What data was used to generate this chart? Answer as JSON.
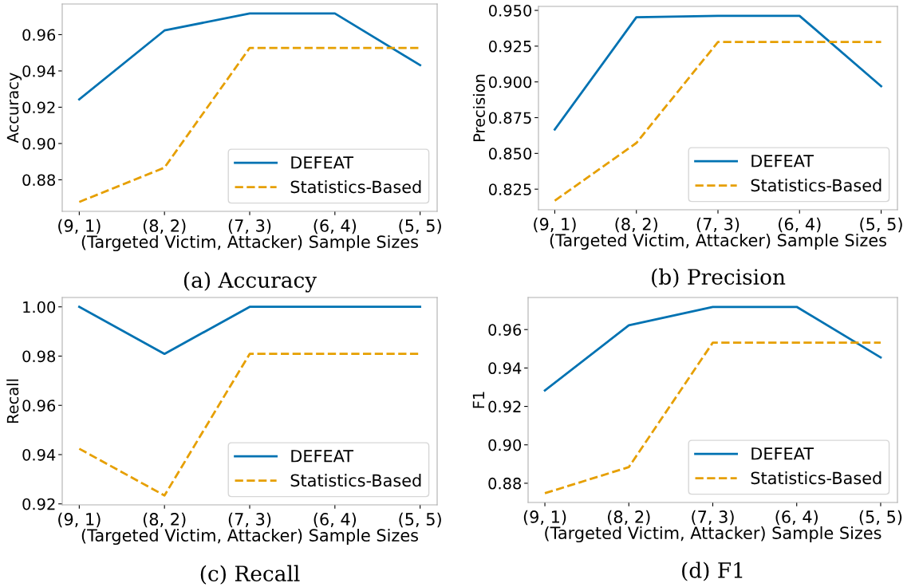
{
  "chart_data": [
    {
      "type": "line",
      "title": "(a) Accuracy",
      "xlabel": "(Targeted Victim, Attacker) Sample Sizes",
      "ylabel": "Accuracy",
      "categories": [
        "(9, 1)",
        "(8, 2)",
        "(7, 3)",
        "(6, 4)",
        "(5, 5)"
      ],
      "ylim": [
        0.8626,
        0.9769
      ],
      "yticks": [
        0.88,
        {
          "value": 0.9,
          "label": "0.90"
        },
        0.92,
        0.94,
        0.96
      ],
      "grid": false,
      "legend": "bottom right",
      "series": [
        {
          "name": "DEFEAT",
          "color": "#0072b2",
          "line_style": "solid",
          "values": [
            0.9243,
            0.9623,
            0.9717,
            0.9717,
            0.9432
          ]
        },
        {
          "name": "Statistics-Based",
          "color": "#e69f00",
          "line_style": "dashed",
          "values": [
            0.8678,
            0.8867,
            0.9527,
            0.9527,
            0.9527
          ]
        }
      ]
    },
    {
      "type": "line",
      "title": "(b) Precision",
      "xlabel": "(Targeted Victim, Attacker) Sample Sizes",
      "ylabel": "Precision",
      "categories": [
        "(9, 1)",
        "(8, 2)",
        "(7, 3)",
        "(6, 4)",
        "(5, 5)"
      ],
      "ylim": [
        0.8106,
        0.9528
      ],
      "yticks": [
        0.825,
        {
          "value": 0.85,
          "label": "0.850"
        },
        0.875,
        {
          "value": 0.9,
          "label": "0.900"
        },
        0.925,
        {
          "value": 0.95,
          "label": "0.950"
        }
      ],
      "grid": false,
      "legend": "bottom right",
      "series": [
        {
          "name": "DEFEAT",
          "color": "#0072b2",
          "line_style": "solid",
          "values": [
            0.8667,
            0.9452,
            0.9462,
            0.9462,
            0.897
          ]
        },
        {
          "name": "Statistics-Based",
          "color": "#e69f00",
          "line_style": "dashed",
          "values": [
            0.817,
            0.8573,
            0.9279,
            0.9279,
            0.9279
          ]
        }
      ]
    },
    {
      "type": "line",
      "title": "(c) Recall",
      "xlabel": "(Targeted Victim, Attacker) Sample Sizes",
      "ylabel": "Recall",
      "categories": [
        "(9, 1)",
        "(8, 2)",
        "(7, 3)",
        "(6, 4)",
        "(5, 5)"
      ],
      "ylim": [
        0.9196,
        1.0038
      ],
      "yticks": [
        0.92,
        0.94,
        0.96,
        0.98,
        {
          "value": 1.0,
          "label": "1.00"
        }
      ],
      "grid": false,
      "legend": "bottom right",
      "series": [
        {
          "name": "DEFEAT",
          "color": "#0072b2",
          "line_style": "solid",
          "values": [
            1.0,
            0.9809,
            1.0,
            1.0,
            1.0
          ]
        },
        {
          "name": "Statistics-Based",
          "color": "#e69f00",
          "line_style": "dashed",
          "values": [
            0.9424,
            0.9234,
            0.9809,
            0.9809,
            0.9809
          ]
        }
      ]
    },
    {
      "type": "line",
      "title": "(d) F1",
      "xlabel": "(Targeted Victim, Attacker) Sample Sizes",
      "ylabel": "F1",
      "categories": [
        "(9, 1)",
        "(8, 2)",
        "(7, 3)",
        "(6, 4)",
        "(5, 5)"
      ],
      "ylim": [
        0.87,
        0.9767
      ],
      "yticks": [
        0.88,
        {
          "value": 0.9,
          "label": "0.90"
        },
        0.92,
        0.94,
        0.96
      ],
      "grid": false,
      "legend": "bottom right",
      "series": [
        {
          "name": "DEFEAT",
          "color": "#0072b2",
          "line_style": "solid",
          "values": [
            0.9283,
            0.9622,
            0.9718,
            0.9718,
            0.9455
          ]
        },
        {
          "name": "Statistics-Based",
          "color": "#e69f00",
          "line_style": "dashed",
          "values": [
            0.8748,
            0.8884,
            0.9532,
            0.9532,
            0.9532
          ]
        }
      ]
    }
  ]
}
